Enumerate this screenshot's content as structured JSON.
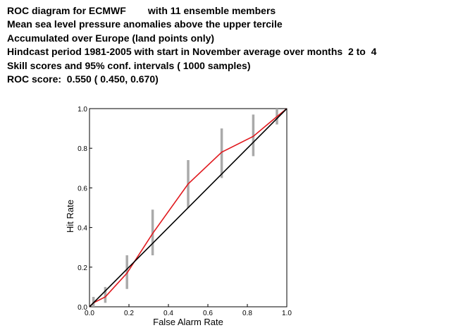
{
  "header_lines": [
    "ROC diagram for ECMWF        with 11 ensemble members",
    "Mean sea level pressure anomalies above the upper tercile",
    "Accumulated over Europe (land points only)",
    "Hindcast period 1981-2005 with start in November average over months  2 to  4",
    "Skill scores and 95% conf. intervals ( 1000 samples)",
    "ROC score:  0.550 ( 0.450, 0.670)"
  ],
  "chart_data": {
    "type": "line",
    "xlabel": "False Alarm Rate",
    "ylabel": "Hit Rate",
    "xlim": [
      0,
      1
    ],
    "ylim": [
      0,
      1
    ],
    "x_ticks": [
      "0.0",
      "0.2",
      "0.4",
      "0.6",
      "0.8",
      "1.0"
    ],
    "y_ticks": [
      "0.0",
      "0.2",
      "0.4",
      "0.6",
      "0.8",
      "1.0"
    ],
    "grid": false,
    "colors": {
      "roc": "#e0191e",
      "diagonal": "#000000",
      "ci": "#aaaaaa"
    },
    "series": [
      {
        "key": "roc",
        "x": [
          0.0,
          0.02,
          0.08,
          0.19,
          0.32,
          0.5,
          0.67,
          0.83,
          0.95,
          1.0
        ],
        "y": [
          0.0,
          0.02,
          0.05,
          0.17,
          0.37,
          0.62,
          0.78,
          0.86,
          0.96,
          1.0
        ]
      },
      {
        "key": "diagonal",
        "x": [
          0.0,
          1.0
        ],
        "y": [
          0.0,
          1.0
        ]
      }
    ],
    "conf_intervals": [
      {
        "x": 0.02,
        "low": 0.0,
        "high": 0.05
      },
      {
        "x": 0.08,
        "low": 0.02,
        "high": 0.1
      },
      {
        "x": 0.19,
        "low": 0.09,
        "high": 0.26
      },
      {
        "x": 0.32,
        "low": 0.26,
        "high": 0.49
      },
      {
        "x": 0.5,
        "low": 0.5,
        "high": 0.74
      },
      {
        "x": 0.67,
        "low": 0.65,
        "high": 0.9
      },
      {
        "x": 0.83,
        "low": 0.76,
        "high": 0.97
      },
      {
        "x": 0.95,
        "low": 0.92,
        "high": 1.0
      }
    ]
  }
}
